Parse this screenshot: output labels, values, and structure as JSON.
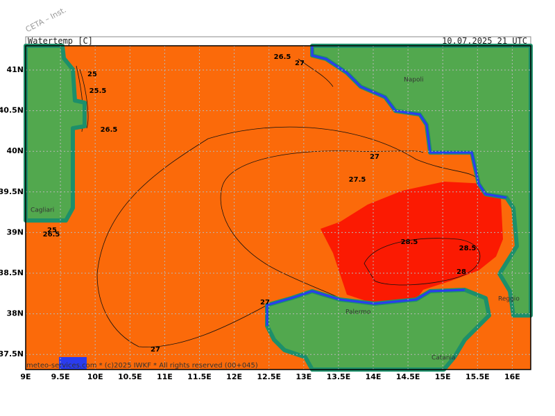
{
  "header": {
    "watermark": "CETA – Inst.",
    "title": "Watertemp [C]",
    "timestamp": "10.07.2025 21 UTC"
  },
  "axes": {
    "lat_labels": [
      "41N",
      "40.5N",
      "40N",
      "39.5N",
      "39N",
      "38.5N",
      "38N",
      "37.5N"
    ],
    "lon_labels": [
      "9E",
      "9.5E",
      "10E",
      "10.5E",
      "11E",
      "11.5E",
      "12E",
      "12.5E",
      "13E",
      "13.5E",
      "14E",
      "14.5E",
      "15E",
      "15.5E",
      "16E"
    ]
  },
  "contour_labels": [
    "26.5",
    "27",
    "25",
    "25.5",
    "26.5",
    "27",
    "27.5",
    "25",
    "26.5",
    "28.5",
    "28.5",
    "28",
    "27",
    "27"
  ],
  "places": [
    "Napoli",
    "Cagliari",
    "Palermo",
    "Reggio",
    "Catania"
  ],
  "footer": "meteo-services.com * (c)2025 IWKF * All rights reserved (00+045)"
}
